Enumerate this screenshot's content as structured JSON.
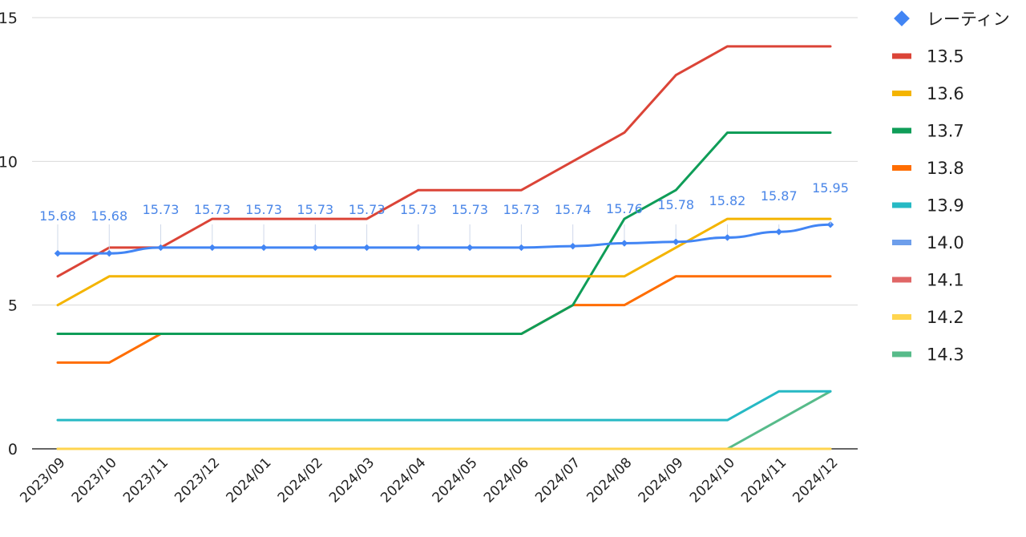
{
  "chart_data": {
    "type": "line",
    "title": "",
    "xlabel": "",
    "ylabel": "",
    "ylim": [
      0,
      15
    ],
    "yticks": [
      0,
      5,
      10,
      15
    ],
    "grid": true,
    "legend_position": "right",
    "categories": [
      "2023/09",
      "2023/10",
      "2023/11",
      "2023/12",
      "2024/01",
      "2024/02",
      "2024/03",
      "2024/04",
      "2024/05",
      "2024/06",
      "2024/07",
      "2024/08",
      "2024/09",
      "2024/10",
      "2024/11",
      "2024/12"
    ],
    "rating_series": {
      "name": "レーティン",
      "color": "#4285f4",
      "marker": "diamond",
      "labels": [
        "15.68",
        "15.68",
        "15.73",
        "15.73",
        "15.73",
        "15.73",
        "15.73",
        "15.73",
        "15.73",
        "15.73",
        "15.74",
        "15.76",
        "15.78",
        "15.82",
        "15.87",
        "15.95"
      ],
      "values": [
        6.8,
        6.8,
        7.0,
        7.0,
        7.0,
        7.0,
        7.0,
        7.0,
        7.0,
        7.0,
        7.05,
        7.15,
        7.2,
        7.35,
        7.55,
        7.8
      ]
    },
    "series": [
      {
        "name": "13.5",
        "color": "#db4437",
        "values": [
          6,
          7,
          7,
          8,
          8,
          8,
          8,
          9,
          9,
          9,
          10,
          11,
          13,
          14,
          14,
          14
        ]
      },
      {
        "name": "13.6",
        "color": "#f4b400",
        "values": [
          5,
          6,
          6,
          6,
          6,
          6,
          6,
          6,
          6,
          6,
          6,
          6,
          7,
          8,
          8,
          8
        ]
      },
      {
        "name": "13.7",
        "color": "#0f9d58",
        "values": [
          4,
          4,
          4,
          4,
          4,
          4,
          4,
          4,
          4,
          4,
          5,
          8,
          9,
          11,
          11,
          11
        ]
      },
      {
        "name": "13.8",
        "color": "#ff6d00",
        "values": [
          3,
          3,
          4,
          4,
          4,
          4,
          4,
          4,
          4,
          4,
          5,
          5,
          6,
          6,
          6,
          6
        ]
      },
      {
        "name": "13.9",
        "color": "#26b9c4",
        "values": [
          1,
          1,
          1,
          1,
          1,
          1,
          1,
          1,
          1,
          1,
          1,
          1,
          1,
          1,
          2,
          2
        ]
      },
      {
        "name": "14.0",
        "color": "#6d9eeb",
        "values": null
      },
      {
        "name": "14.1",
        "color": "#e06666",
        "values": null
      },
      {
        "name": "14.2",
        "color": "#ffd54f",
        "values": [
          0,
          0,
          0,
          0,
          0,
          0,
          0,
          0,
          0,
          0,
          0,
          0,
          0,
          0,
          0,
          0
        ]
      },
      {
        "name": "14.3",
        "color": "#57bb8a",
        "values": [
          0,
          0,
          0,
          0,
          0,
          0,
          0,
          0,
          0,
          0,
          0,
          0,
          0,
          0,
          1,
          2
        ]
      }
    ]
  }
}
